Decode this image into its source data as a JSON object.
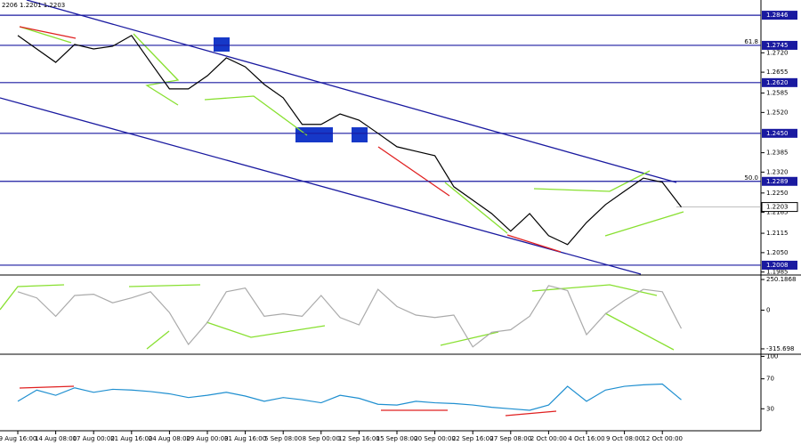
{
  "chart_data": [
    {
      "type": "line",
      "title": "2206 1.2201 1.2203",
      "color": "#000000",
      "categories": [
        "9 Aug 16:00",
        null,
        "14 Aug 08:00",
        null,
        "17 Aug 00:00",
        null,
        "21 Aug 16:00",
        null,
        "24 Aug 08:00",
        null,
        "29 Aug 00:00",
        null,
        "31 Aug 16:00",
        null,
        "5 Sep 08:00",
        null,
        "8 Sep 00:00",
        null,
        "12 Sep 16:00",
        null,
        "15 Sep 08:00",
        null,
        "20 Sep 00:00",
        null,
        "22 Sep 16:00",
        null,
        "27 Sep 08:00",
        null,
        "2 Oct 00:00",
        null,
        "4 Oct 16:00",
        null,
        "9 Oct 08:00",
        null,
        "12 Oct 00:00",
        null
      ],
      "values": [
        1.2778,
        1.2733,
        1.2688,
        1.2748,
        1.2733,
        1.2742,
        1.2778,
        1.2688,
        1.2599,
        1.2599,
        1.2643,
        1.2703,
        1.2673,
        1.2614,
        1.2569,
        1.248,
        1.248,
        1.2515,
        1.2494,
        1.245,
        1.2405,
        1.239,
        1.2375,
        1.2271,
        1.2226,
        1.2181,
        1.2122,
        1.2181,
        1.2107,
        1.2077,
        1.2151,
        1.2211,
        1.2256,
        1.23,
        1.2286,
        1.2203
      ],
      "ylim": [
        1.1978,
        1.2897
      ],
      "yticks": [
        {
          "value": 1.272,
          "label": "1.2720"
        },
        {
          "value": 1.2655,
          "label": "1.2655"
        },
        {
          "value": 1.2585,
          "label": "1.2585"
        },
        {
          "value": 1.252,
          "label": "1.2520"
        },
        {
          "value": 1.2385,
          "label": "1.2385"
        },
        {
          "value": 1.232,
          "label": "1.2320"
        },
        {
          "value": 1.225,
          "label": "1.2250"
        },
        {
          "value": 1.2185,
          "label": "1.2185"
        },
        {
          "value": 1.2115,
          "label": "1.2115"
        },
        {
          "value": 1.205,
          "label": "1.2050"
        },
        {
          "value": 1.1985,
          "label": "1.1985"
        }
      ],
      "levels": [
        {
          "value": 1.2846,
          "label": "1.2846"
        },
        {
          "value": 1.2745,
          "label": "1.2745"
        },
        {
          "value": 1.262,
          "label": "1.2620"
        },
        {
          "value": 1.245,
          "label": "1.2450"
        },
        {
          "value": 1.2289,
          "label": "1.2289"
        },
        {
          "value": 1.2008,
          "label": "1.2008"
        }
      ],
      "fib_labels": [
        {
          "value": 1.2745,
          "label": "61.8"
        },
        {
          "value": 1.2289,
          "label": "50.0"
        }
      ],
      "last_price": {
        "value": 1.2203,
        "label": "1.2203"
      }
    },
    {
      "type": "line",
      "color": "#aaaaaa",
      "values": [
        150,
        100,
        -50,
        120,
        130,
        60,
        100,
        150,
        -20,
        -280,
        -100,
        150,
        180,
        -50,
        -30,
        -50,
        120,
        -60,
        -120,
        170,
        30,
        -40,
        -60,
        -40,
        -300,
        -180,
        -160,
        -50,
        200,
        160,
        -200,
        -30,
        80,
        170,
        150,
        -150
      ],
      "ylim": [
        -352.4,
        279.6
      ],
      "yticks": [
        {
          "value": 250.1868,
          "label": "250.1868"
        },
        0,
        {
          "value": -315.698,
          "label": "-315.698"
        }
      ]
    },
    {
      "type": "line",
      "color": "#1f8fd0",
      "values": [
        40,
        55,
        48,
        58,
        52,
        56,
        55,
        53,
        50,
        45,
        48,
        52,
        47,
        40,
        45,
        42,
        38,
        48,
        44,
        36,
        35,
        40,
        38,
        37,
        35,
        32,
        30,
        28,
        35,
        60,
        40,
        55,
        60,
        62,
        63,
        42
      ],
      "ylim": [
        3,
        100.5
      ],
      "yticks": [
        100,
        70,
        30
      ]
    }
  ]
}
